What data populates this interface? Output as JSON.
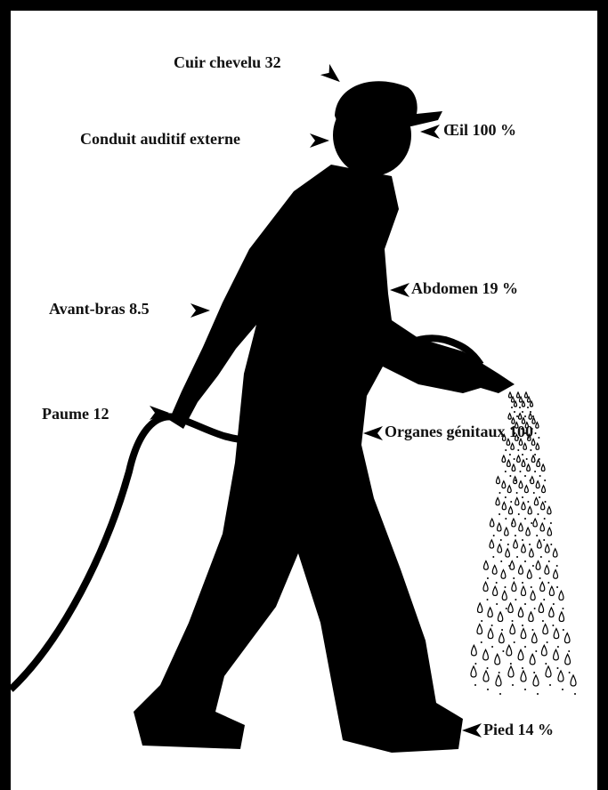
{
  "labels": [
    "Cuir chevelu 32",
    "Conduit auditif externe",
    "Œil 100 %",
    "Abdomen 19 %",
    "Avant-bras 8.5",
    "Paume 12",
    "Organes génitaux 100",
    "Pied 14 %"
  ]
}
